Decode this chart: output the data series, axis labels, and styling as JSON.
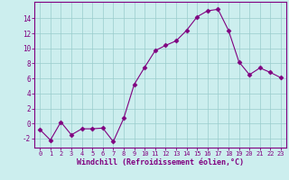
{
  "x": [
    0,
    1,
    2,
    3,
    4,
    5,
    6,
    7,
    8,
    9,
    10,
    11,
    12,
    13,
    14,
    15,
    16,
    17,
    18,
    19,
    20,
    21,
    22,
    23
  ],
  "y": [
    -0.8,
    -2.2,
    0.2,
    -1.5,
    -0.7,
    -0.7,
    -0.6,
    -2.4,
    0.7,
    5.2,
    7.5,
    9.7,
    10.4,
    11.0,
    12.4,
    14.2,
    15.0,
    15.2,
    12.4,
    8.2,
    6.5,
    7.4,
    6.8,
    6.1
  ],
  "line_color": "#800080",
  "marker": "D",
  "marker_size": 2.5,
  "bg_color": "#cceeee",
  "grid_color": "#99cccc",
  "xlabel": "Windchill (Refroidissement éolien,°C)",
  "xlabel_color": "#800080",
  "tick_color": "#800080",
  "xlim": [
    -0.5,
    23.5
  ],
  "ylim": [
    -3.2,
    16.2
  ],
  "yticks": [
    -2,
    0,
    2,
    4,
    6,
    8,
    10,
    12,
    14
  ],
  "xticks": [
    0,
    1,
    2,
    3,
    4,
    5,
    6,
    7,
    8,
    9,
    10,
    11,
    12,
    13,
    14,
    15,
    16,
    17,
    18,
    19,
    20,
    21,
    22,
    23
  ],
  "spine_color": "#800080"
}
